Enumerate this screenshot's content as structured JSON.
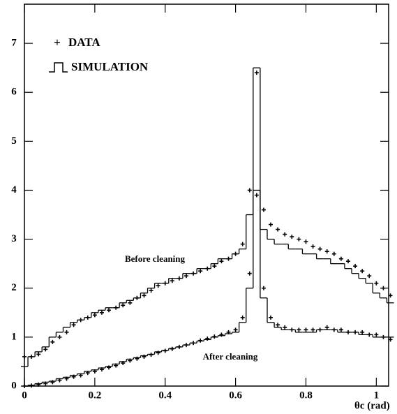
{
  "chart_data": {
    "type": "histogram-step",
    "x_label": "θc (rad)",
    "x": [
      0,
      0.02,
      0.04,
      0.06,
      0.08,
      0.1,
      0.12,
      0.14,
      0.16,
      0.18,
      0.2,
      0.22,
      0.24,
      0.26,
      0.28,
      0.3,
      0.32,
      0.34,
      0.36,
      0.38,
      0.4,
      0.42,
      0.44,
      0.46,
      0.48,
      0.5,
      0.52,
      0.54,
      0.56,
      0.58,
      0.6,
      0.62,
      0.64,
      0.66,
      0.68,
      0.7,
      0.72,
      0.74,
      0.76,
      0.78,
      0.8,
      0.82,
      0.84,
      0.86,
      0.88,
      0.9,
      0.92,
      0.94,
      0.96,
      0.98,
      1.0,
      1.02,
      1.04
    ],
    "xlim": [
      0,
      1.035
    ],
    "ylim": [
      0,
      7.8
    ],
    "xticks": [
      0,
      0.2,
      0.4,
      0.6,
      0.8,
      1
    ],
    "yticks": [
      0,
      1,
      2,
      3,
      4,
      5,
      6,
      7
    ],
    "legend": {
      "data": "DATA",
      "simulation": "SIMULATION"
    },
    "curves": [
      {
        "label": "Before cleaning",
        "simulation": [
          0.4,
          0.6,
          0.7,
          0.8,
          1.0,
          1.1,
          1.2,
          1.3,
          1.35,
          1.4,
          1.5,
          1.55,
          1.6,
          1.6,
          1.7,
          1.75,
          1.8,
          1.9,
          2.0,
          2.1,
          2.1,
          2.2,
          2.2,
          2.3,
          2.3,
          2.4,
          2.4,
          2.5,
          2.6,
          2.6,
          2.7,
          2.8,
          3.5,
          6.5,
          3.2,
          3.0,
          2.9,
          2.9,
          2.8,
          2.8,
          2.7,
          2.7,
          2.6,
          2.6,
          2.5,
          2.5,
          2.4,
          2.3,
          2.2,
          2.1,
          1.9,
          1.8,
          1.7
        ],
        "data": [
          0.6,
          0.6,
          0.65,
          0.75,
          0.9,
          1.0,
          1.1,
          1.25,
          1.35,
          1.4,
          1.45,
          1.5,
          1.55,
          1.6,
          1.65,
          1.7,
          1.8,
          1.85,
          1.95,
          2.05,
          2.1,
          2.15,
          2.2,
          2.25,
          2.3,
          2.35,
          2.4,
          2.45,
          2.55,
          2.6,
          2.7,
          2.9,
          4.0,
          6.4,
          3.6,
          3.3,
          3.2,
          3.1,
          3.05,
          3.0,
          2.95,
          2.85,
          2.8,
          2.75,
          2.7,
          2.6,
          2.55,
          2.45,
          2.35,
          2.25,
          2.1,
          2.0,
          1.85
        ]
      },
      {
        "label": "After cleaning",
        "simulation": [
          0,
          0.02,
          0.05,
          0.08,
          0.1,
          0.15,
          0.18,
          0.22,
          0.25,
          0.3,
          0.33,
          0.37,
          0.4,
          0.45,
          0.5,
          0.55,
          0.58,
          0.62,
          0.65,
          0.7,
          0.73,
          0.77,
          0.8,
          0.84,
          0.88,
          0.92,
          0.95,
          1.0,
          1.03,
          1.07,
          1.1,
          1.3,
          2.0,
          4.0,
          1.8,
          1.3,
          1.2,
          1.15,
          1.15,
          1.1,
          1.1,
          1.1,
          1.15,
          1.15,
          1.15,
          1.1,
          1.1,
          1.1,
          1.05,
          1.05,
          1.0,
          1.0,
          1.0
        ],
        "data": [
          0,
          0.01,
          0.03,
          0.05,
          0.08,
          0.12,
          0.15,
          0.19,
          0.22,
          0.27,
          0.3,
          0.34,
          0.38,
          0.42,
          0.47,
          0.52,
          0.56,
          0.6,
          0.64,
          0.68,
          0.72,
          0.76,
          0.8,
          0.84,
          0.88,
          0.93,
          0.97,
          1.01,
          1.05,
          1.1,
          1.15,
          1.4,
          2.3,
          3.9,
          2.0,
          1.4,
          1.25,
          1.2,
          1.15,
          1.15,
          1.15,
          1.15,
          1.15,
          1.2,
          1.15,
          1.15,
          1.1,
          1.1,
          1.1,
          1.05,
          1.05,
          1.0,
          0.95
        ]
      }
    ]
  }
}
